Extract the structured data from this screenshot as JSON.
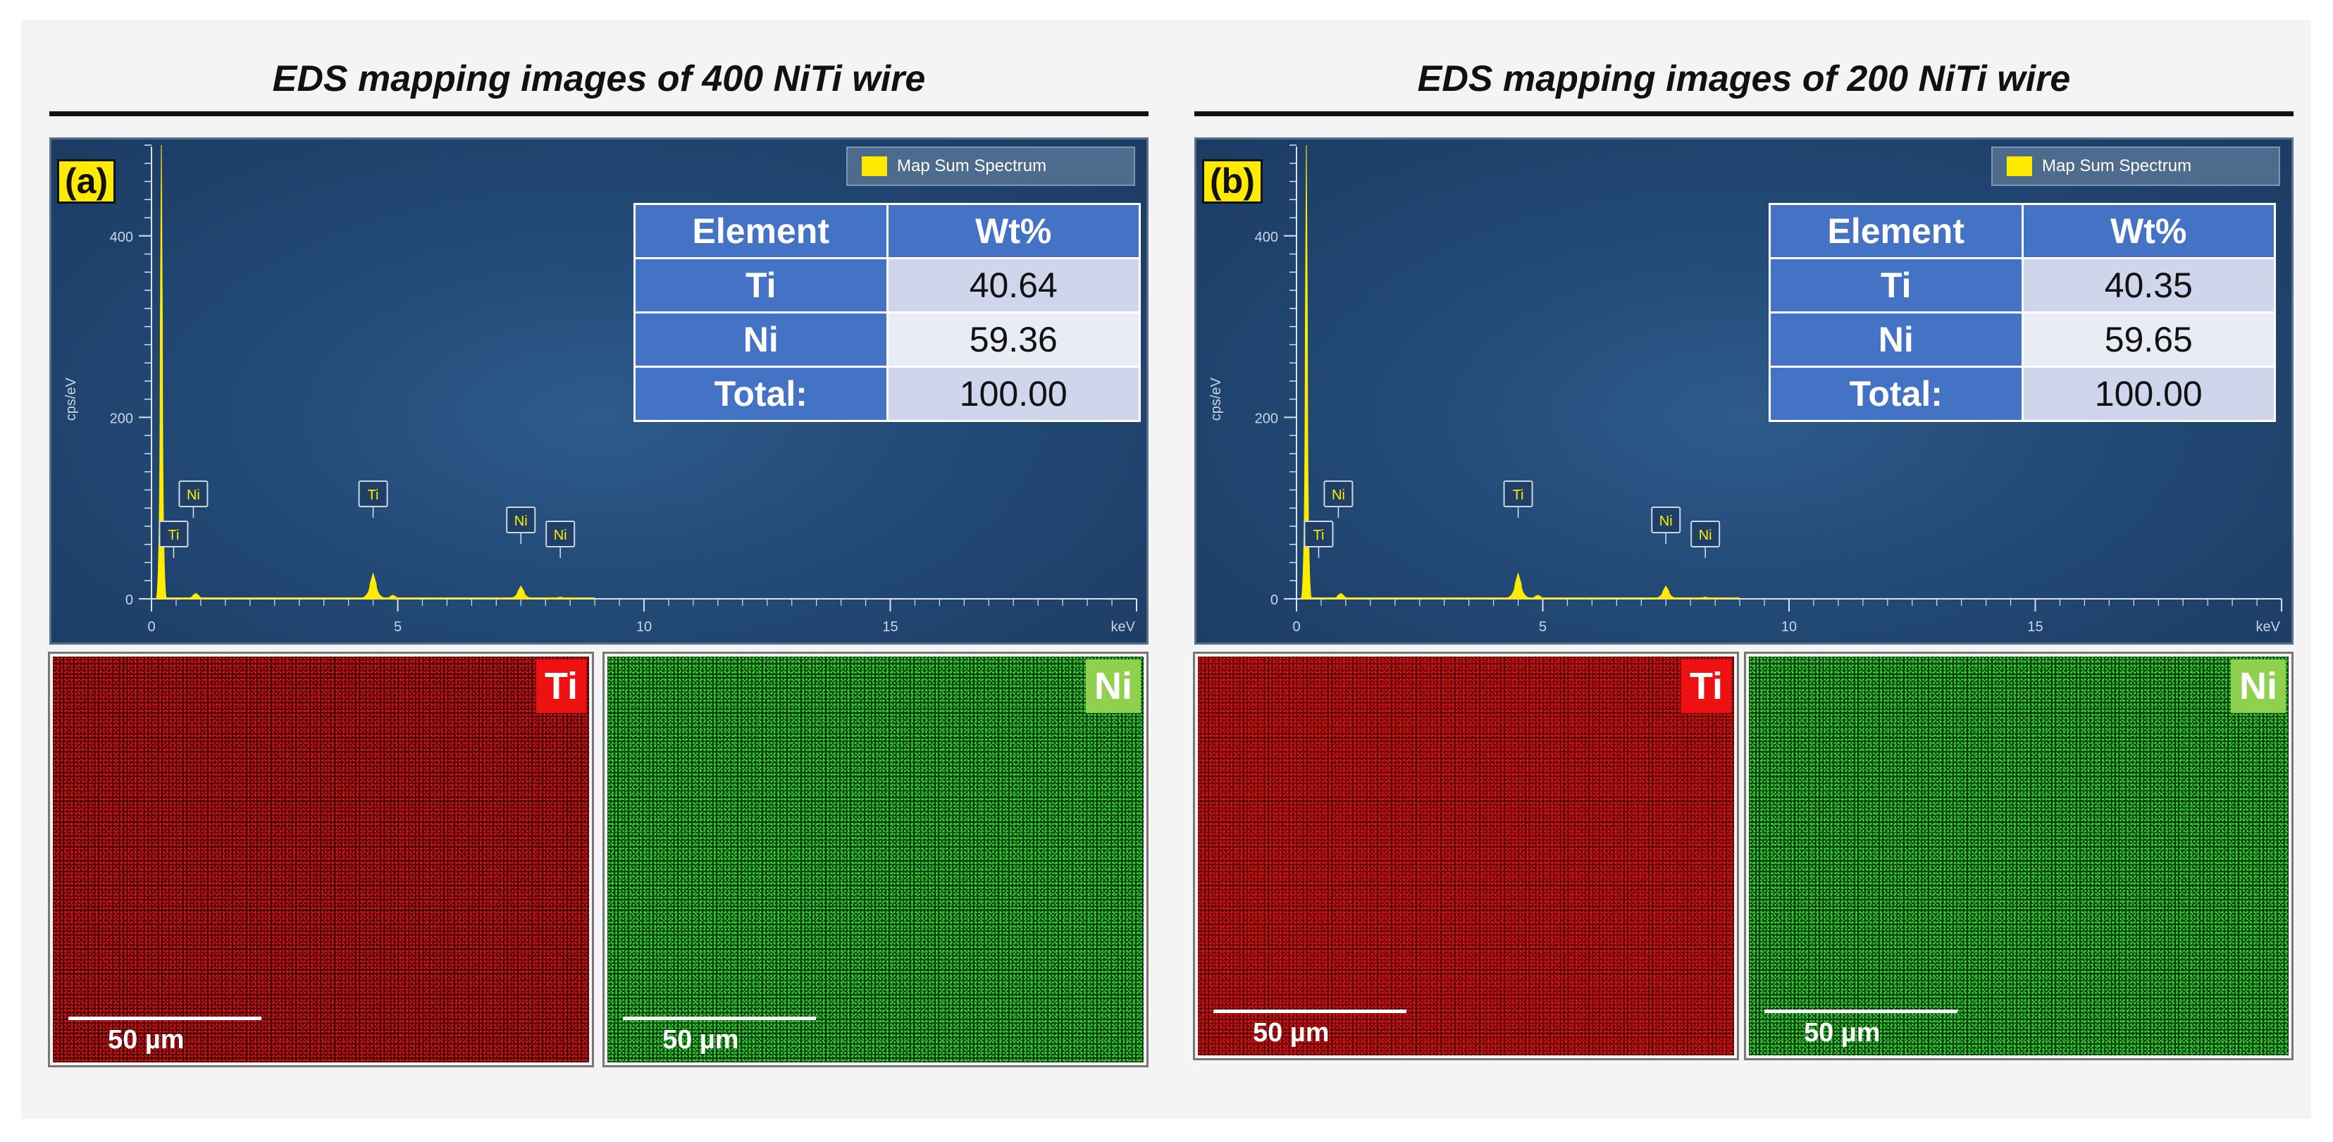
{
  "panels": [
    {
      "title": "EDS mapping images of 400 NiTi wire",
      "label": "(a)",
      "legend": "Map Sum Spectrum",
      "table": {
        "headers": [
          "Element",
          "Wt%"
        ],
        "rows": [
          {
            "element": "Ti",
            "wt": "40.64"
          },
          {
            "element": "Ni",
            "wt": "59.36"
          },
          {
            "element": "Total:",
            "wt": "100.00"
          }
        ]
      },
      "maps": [
        {
          "element": "Ti",
          "scale": "50 µm"
        },
        {
          "element": "Ni",
          "scale": "50 µm"
        }
      ]
    },
    {
      "title": "EDS mapping images of 200 NiTi wire",
      "label": "(b)",
      "legend": "Map Sum Spectrum",
      "table": {
        "headers": [
          "Element",
          "Wt%"
        ],
        "rows": [
          {
            "element": "Ti",
            "wt": "40.35"
          },
          {
            "element": "Ni",
            "wt": "59.65"
          },
          {
            "element": "Total:",
            "wt": "100.00"
          }
        ]
      },
      "maps": [
        {
          "element": "Ti",
          "scale": "50 µm"
        },
        {
          "element": "Ni",
          "scale": "50 µm"
        }
      ]
    }
  ],
  "chart_data": [
    {
      "type": "line",
      "ylabel": "cps/eV",
      "xunit": "keV",
      "xlim": [
        0,
        20
      ],
      "ylim": [
        0,
        500
      ],
      "xticks": [
        "0",
        "5",
        "10",
        "15"
      ],
      "yticks": [
        "0",
        "200",
        "400"
      ],
      "series": [
        {
          "name": "Map Sum Spectrum",
          "peaks": [
            {
              "x": 0.2,
              "y": 510
            },
            {
              "x": 0.9,
              "y": 6
            },
            {
              "x": 4.5,
              "y": 28
            },
            {
              "x": 4.9,
              "y": 4
            },
            {
              "x": 7.5,
              "y": 14
            },
            {
              "x": 8.3,
              "y": 2
            }
          ]
        }
      ],
      "peak_labels": [
        {
          "text": "Ti",
          "x": 0.45
        },
        {
          "text": "Ni",
          "x": 0.85
        },
        {
          "text": "Ti",
          "x": 4.5
        },
        {
          "text": "Ni",
          "x": 7.5
        },
        {
          "text": "Ni",
          "x": 8.3
        }
      ],
      "color": "#ffeb00"
    },
    {
      "type": "line",
      "ylabel": "cps/eV",
      "xunit": "keV",
      "xlim": [
        0,
        20
      ],
      "ylim": [
        0,
        500
      ],
      "xticks": [
        "0",
        "5",
        "10",
        "15"
      ],
      "yticks": [
        "0",
        "200",
        "400"
      ],
      "series": [
        {
          "name": "Map Sum Spectrum",
          "peaks": [
            {
              "x": 0.2,
              "y": 510
            },
            {
              "x": 0.9,
              "y": 6
            },
            {
              "x": 4.5,
              "y": 28
            },
            {
              "x": 4.9,
              "y": 4
            },
            {
              "x": 7.5,
              "y": 14
            },
            {
              "x": 8.3,
              "y": 2
            }
          ]
        }
      ],
      "peak_labels": [
        {
          "text": "Ti",
          "x": 0.45
        },
        {
          "text": "Ni",
          "x": 0.85
        },
        {
          "text": "Ti",
          "x": 4.5
        },
        {
          "text": "Ni",
          "x": 7.5
        },
        {
          "text": "Ni",
          "x": 8.3
        }
      ],
      "color": "#ffeb00"
    }
  ]
}
